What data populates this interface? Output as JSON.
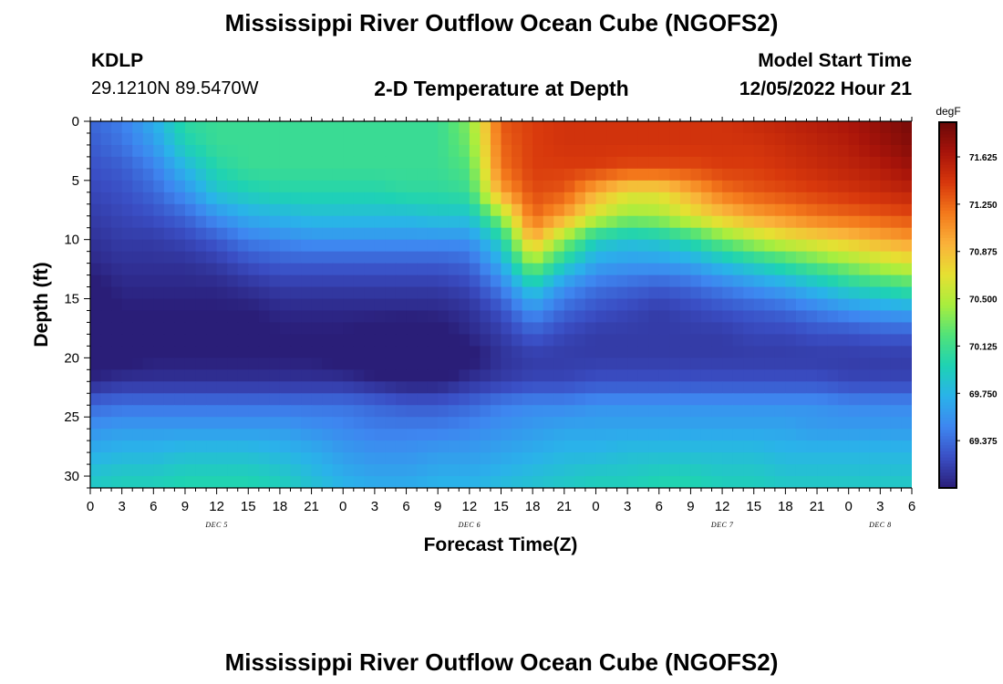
{
  "header": {
    "title": "Mississippi River Outflow Ocean Cube (NGOFS2)",
    "station": "KDLP",
    "coords": "29.1210N  89.5470W",
    "subtitle": "2-D Temperature at Depth",
    "model_start_label": "Model Start Time",
    "model_start_value": "12/05/2022 Hour 21"
  },
  "footer": {
    "title": "Mississippi River Outflow Ocean Cube (NGOFS2)"
  },
  "chart_data": {
    "type": "heatmap",
    "title": "2-D Temperature at Depth",
    "xlabel": "Forecast Time(Z)",
    "ylabel": "Depth (ft)",
    "x_tick_labels": [
      "0",
      "3",
      "6",
      "9",
      "12",
      "15",
      "18",
      "21",
      "0",
      "3",
      "6",
      "9",
      "12",
      "15",
      "18",
      "21",
      "0",
      "3",
      "6",
      "9",
      "12",
      "15",
      "18",
      "21",
      "0",
      "3",
      "6"
    ],
    "x_hours_range": [
      0,
      78
    ],
    "date_labels": [
      {
        "label": "DEC 5",
        "hour": 12
      },
      {
        "label": "DEC 6",
        "hour": 36
      },
      {
        "label": "DEC 7",
        "hour": 60
      },
      {
        "label": "DEC 8",
        "hour": 75
      }
    ],
    "y_ticks": [
      0,
      5,
      10,
      15,
      20,
      25,
      30
    ],
    "ylim": [
      0,
      31
    ],
    "y_inverted": true,
    "colorbar": {
      "unit": "degF",
      "tick_labels": [
        "71.625",
        "71.250",
        "70.875",
        "70.500",
        "70.125",
        "69.750",
        "69.375"
      ],
      "tick_values": [
        71.625,
        71.25,
        70.875,
        70.5,
        70.125,
        69.75,
        69.375
      ],
      "range": [
        69.0,
        71.9
      ],
      "colors": [
        "#2a1e78",
        "#3a4ec4",
        "#3e86f0",
        "#2ab2ea",
        "#1ed2b4",
        "#50e27a",
        "#a8ee3e",
        "#e6e032",
        "#fab23a",
        "#f47a1c",
        "#d8380c",
        "#a8140a",
        "#6a0808"
      ]
    },
    "temperature_field": {
      "description_levels": "rows are depth 0-31 ft, columns are forecast hours 0-78",
      "depth_ft": [
        0,
        2,
        4,
        6,
        8,
        10,
        12,
        14,
        16,
        18,
        20,
        22,
        24,
        26,
        28,
        30,
        31
      ],
      "hours": [
        0,
        3,
        6,
        9,
        12,
        15,
        18,
        21,
        24,
        27,
        30,
        33,
        36,
        39,
        42,
        45,
        48,
        51,
        54,
        57,
        60,
        63,
        66,
        69,
        72,
        75,
        78
      ],
      "values": [
        [
          69.35,
          69.45,
          69.7,
          70.05,
          70.1,
          70.1,
          70.1,
          70.1,
          70.1,
          70.1,
          70.1,
          70.1,
          70.35,
          71.3,
          71.4,
          71.45,
          71.45,
          71.45,
          71.45,
          71.45,
          71.45,
          71.5,
          71.55,
          71.6,
          71.65,
          71.75,
          71.85
        ],
        [
          69.3,
          69.4,
          69.6,
          69.95,
          70.1,
          70.1,
          70.1,
          70.1,
          70.1,
          70.1,
          70.1,
          70.1,
          70.3,
          71.25,
          71.4,
          71.45,
          71.45,
          71.45,
          71.45,
          71.45,
          71.45,
          71.45,
          71.5,
          71.55,
          71.6,
          71.7,
          71.8
        ],
        [
          69.25,
          69.3,
          69.45,
          69.75,
          70.0,
          70.1,
          70.1,
          70.1,
          70.1,
          70.1,
          70.1,
          70.1,
          70.2,
          71.2,
          71.4,
          71.4,
          71.4,
          71.35,
          71.35,
          71.35,
          71.4,
          71.4,
          71.45,
          71.5,
          71.55,
          71.6,
          71.7
        ],
        [
          69.2,
          69.25,
          69.35,
          69.55,
          69.85,
          69.95,
          70.0,
          70.0,
          70.0,
          70.0,
          70.05,
          70.05,
          70.1,
          71.0,
          71.35,
          71.3,
          70.95,
          70.7,
          70.7,
          70.95,
          71.2,
          71.3,
          71.35,
          71.4,
          71.45,
          71.5,
          71.55
        ],
        [
          69.15,
          69.2,
          69.25,
          69.35,
          69.55,
          69.7,
          69.75,
          69.8,
          69.8,
          69.8,
          69.8,
          69.85,
          69.85,
          70.4,
          71.25,
          71.0,
          70.6,
          70.4,
          70.45,
          70.65,
          70.85,
          71.0,
          71.1,
          71.2,
          71.25,
          71.3,
          71.35
        ],
        [
          69.1,
          69.15,
          69.15,
          69.2,
          69.3,
          69.45,
          69.5,
          69.55,
          69.55,
          69.55,
          69.55,
          69.55,
          69.55,
          69.95,
          70.95,
          70.4,
          69.95,
          69.85,
          69.9,
          70.05,
          70.3,
          70.5,
          70.65,
          70.75,
          70.85,
          70.95,
          71.05
        ],
        [
          69.05,
          69.1,
          69.1,
          69.1,
          69.15,
          69.25,
          69.3,
          69.3,
          69.3,
          69.3,
          69.3,
          69.3,
          69.35,
          69.7,
          70.4,
          69.95,
          69.65,
          69.6,
          69.6,
          69.65,
          69.8,
          69.95,
          70.1,
          70.25,
          70.4,
          70.55,
          70.65
        ],
        [
          68.95,
          69.05,
          69.05,
          69.05,
          69.05,
          69.1,
          69.15,
          69.15,
          69.15,
          69.15,
          69.15,
          69.15,
          69.2,
          69.45,
          69.9,
          69.55,
          69.4,
          69.35,
          69.3,
          69.35,
          69.45,
          69.55,
          69.65,
          69.8,
          69.95,
          70.05,
          70.15
        ],
        [
          68.85,
          69.0,
          69.0,
          69.0,
          69.0,
          69.0,
          69.05,
          69.05,
          69.05,
          69.05,
          69.05,
          69.05,
          69.1,
          69.25,
          69.55,
          69.35,
          69.25,
          69.2,
          69.15,
          69.2,
          69.25,
          69.3,
          69.35,
          69.45,
          69.55,
          69.6,
          69.65
        ],
        [
          68.8,
          68.95,
          68.95,
          68.95,
          68.95,
          68.95,
          69.0,
          69.0,
          69.0,
          68.95,
          68.9,
          68.95,
          69.05,
          69.15,
          69.3,
          69.2,
          69.15,
          69.15,
          69.15,
          69.15,
          69.15,
          69.2,
          69.2,
          69.25,
          69.25,
          69.3,
          69.3
        ],
        [
          68.9,
          68.95,
          69.0,
          69.0,
          69.0,
          69.0,
          69.0,
          69.0,
          68.95,
          68.85,
          68.75,
          68.8,
          68.95,
          69.1,
          69.15,
          69.15,
          69.15,
          69.15,
          69.15,
          69.15,
          69.15,
          69.15,
          69.15,
          69.15,
          69.15,
          69.15,
          69.15
        ],
        [
          69.05,
          69.1,
          69.1,
          69.1,
          69.1,
          69.1,
          69.1,
          69.1,
          69.1,
          69.05,
          69.0,
          69.0,
          69.1,
          69.15,
          69.2,
          69.2,
          69.25,
          69.25,
          69.25,
          69.25,
          69.25,
          69.25,
          69.25,
          69.25,
          69.2,
          69.2,
          69.2
        ],
        [
          69.35,
          69.4,
          69.4,
          69.4,
          69.4,
          69.4,
          69.4,
          69.4,
          69.4,
          69.35,
          69.3,
          69.3,
          69.35,
          69.45,
          69.5,
          69.5,
          69.55,
          69.55,
          69.55,
          69.55,
          69.55,
          69.55,
          69.55,
          69.55,
          69.5,
          69.5,
          69.5
        ],
        [
          69.55,
          69.6,
          69.6,
          69.6,
          69.6,
          69.6,
          69.6,
          69.55,
          69.5,
          69.45,
          69.45,
          69.45,
          69.5,
          69.55,
          69.6,
          69.65,
          69.65,
          69.65,
          69.65,
          69.65,
          69.65,
          69.65,
          69.65,
          69.6,
          69.6,
          69.6,
          69.6
        ],
        [
          69.7,
          69.75,
          69.75,
          69.8,
          69.8,
          69.8,
          69.75,
          69.7,
          69.6,
          69.55,
          69.55,
          69.6,
          69.6,
          69.65,
          69.7,
          69.75,
          69.75,
          69.8,
          69.8,
          69.8,
          69.8,
          69.8,
          69.75,
          69.75,
          69.75,
          69.75,
          69.75
        ],
        [
          69.85,
          69.9,
          69.9,
          69.95,
          69.95,
          69.95,
          69.9,
          69.8,
          69.7,
          69.65,
          69.65,
          69.7,
          69.7,
          69.75,
          69.8,
          69.85,
          69.9,
          69.9,
          69.95,
          69.95,
          69.9,
          69.9,
          69.85,
          69.85,
          69.85,
          69.85,
          69.85
        ],
        [
          69.9,
          69.95,
          69.95,
          70.0,
          70.0,
          70.0,
          69.95,
          69.85,
          69.75,
          69.7,
          69.7,
          69.75,
          69.75,
          69.8,
          69.85,
          69.9,
          69.95,
          69.95,
          70.0,
          70.0,
          69.95,
          69.95,
          69.9,
          69.9,
          69.9,
          69.9,
          69.9
        ]
      ]
    }
  }
}
